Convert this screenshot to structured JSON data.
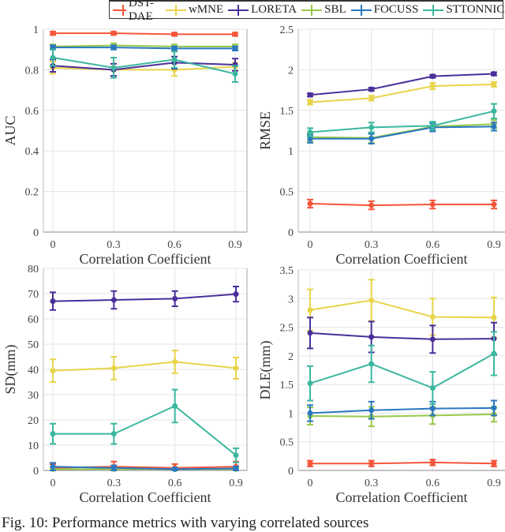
{
  "legend": [
    "DST-DAE",
    "wMNE",
    "LORETA",
    "SBL",
    "FOCUSS",
    "STTONNICA"
  ],
  "colors": [
    "#f4553a",
    "#e8d44a",
    "#4a2f9a",
    "#98c84a",
    "#2a78c0",
    "#3bb79e"
  ],
  "caption": "Fig. 10: Performance metrics with varying correlated sources",
  "chart_data": [
    {
      "type": "line",
      "ylabel": "AUC",
      "xlabel": "Correlation Coefficient",
      "x": [
        0,
        0.3,
        0.6,
        0.9
      ],
      "ylim": [
        0,
        1
      ],
      "yticks": [
        0,
        0.2,
        0.4,
        0.6,
        0.8,
        1
      ],
      "grid": true,
      "series": [
        {
          "name": "DST-DAE",
          "values": [
            0.98,
            0.98,
            0.975,
            0.975
          ],
          "err": [
            0.008,
            0.008,
            0.008,
            0.008
          ]
        },
        {
          "name": "wMNE",
          "values": [
            0.81,
            0.8,
            0.8,
            0.815
          ],
          "err": [
            0.03,
            0.03,
            0.03,
            0.02
          ]
        },
        {
          "name": "LORETA",
          "values": [
            0.82,
            0.8,
            0.835,
            0.825
          ],
          "err": [
            0.03,
            0.03,
            0.03,
            0.03
          ]
        },
        {
          "name": "SBL",
          "values": [
            0.915,
            0.92,
            0.915,
            0.915
          ],
          "err": [
            0.01,
            0.01,
            0.01,
            0.01
          ]
        },
        {
          "name": "FOCUSS",
          "values": [
            0.91,
            0.91,
            0.905,
            0.905
          ],
          "err": [
            0.01,
            0.01,
            0.01,
            0.01
          ]
        },
        {
          "name": "STTONNICA",
          "values": [
            0.86,
            0.81,
            0.85,
            0.78
          ],
          "err": [
            0.04,
            0.05,
            0.04,
            0.04
          ]
        }
      ]
    },
    {
      "type": "line",
      "ylabel": "RMSE",
      "xlabel": "Correlation Coefficient",
      "x": [
        0,
        0.3,
        0.6,
        0.9
      ],
      "ylim": [
        0,
        2.5
      ],
      "yticks": [
        0,
        0.5,
        1,
        1.5,
        2,
        2.5
      ],
      "grid": true,
      "series": [
        {
          "name": "DST-DAE",
          "values": [
            0.35,
            0.33,
            0.34,
            0.34
          ],
          "err": [
            0.05,
            0.05,
            0.05,
            0.05
          ]
        },
        {
          "name": "wMNE",
          "values": [
            1.6,
            1.65,
            1.8,
            1.82
          ],
          "err": [
            0.03,
            0.03,
            0.04,
            0.03
          ]
        },
        {
          "name": "LORETA",
          "values": [
            1.69,
            1.76,
            1.92,
            1.95
          ],
          "err": [
            0.02,
            0.02,
            0.02,
            0.02
          ]
        },
        {
          "name": "SBL",
          "values": [
            1.17,
            1.16,
            1.3,
            1.33
          ],
          "err": [
            0.05,
            0.06,
            0.05,
            0.05
          ]
        },
        {
          "name": "FOCUSS",
          "values": [
            1.15,
            1.15,
            1.29,
            1.3
          ],
          "err": [
            0.05,
            0.06,
            0.05,
            0.05
          ]
        },
        {
          "name": "STTONNICA",
          "values": [
            1.23,
            1.29,
            1.31,
            1.49
          ],
          "err": [
            0.05,
            0.06,
            0.05,
            0.09
          ]
        }
      ]
    },
    {
      "type": "line",
      "ylabel": "SD(mm)",
      "xlabel": "Correlation Coefficient",
      "x": [
        0,
        0.3,
        0.6,
        0.9
      ],
      "ylim": [
        0,
        80
      ],
      "yticks": [
        0,
        10,
        20,
        30,
        40,
        50,
        60,
        70,
        80
      ],
      "grid": true,
      "series": [
        {
          "name": "DST-DAE",
          "values": [
            1,
            1.5,
            1,
            1.5
          ],
          "err": [
            1.5,
            2,
            1.5,
            2
          ]
        },
        {
          "name": "wMNE",
          "values": [
            39.5,
            40.5,
            43,
            40.5
          ],
          "err": [
            4.5,
            4.5,
            4.5,
            4.2
          ]
        },
        {
          "name": "LORETA",
          "values": [
            67,
            67.5,
            68,
            69.8
          ],
          "err": [
            3.5,
            3.5,
            3,
            3
          ]
        },
        {
          "name": "SBL",
          "values": [
            0.5,
            0.5,
            0.5,
            0.5
          ],
          "err": [
            0.5,
            0.5,
            0.5,
            0.5
          ]
        },
        {
          "name": "FOCUSS",
          "values": [
            1.5,
            1,
            0.5,
            0.8
          ],
          "err": [
            1.5,
            1,
            0.5,
            0.8
          ]
        },
        {
          "name": "STTONNICA",
          "values": [
            14.5,
            14.5,
            25.5,
            6
          ],
          "err": [
            4,
            4,
            6.5,
            2.8
          ]
        }
      ]
    },
    {
      "type": "line",
      "ylabel": "DLE(mm)",
      "xlabel": "Correlation Coefficient",
      "x": [
        0,
        0.3,
        0.6,
        0.9
      ],
      "ylim": [
        0,
        3.5
      ],
      "yticks": [
        0,
        0.5,
        1,
        1.5,
        2,
        2.5,
        3,
        3.5
      ],
      "grid": true,
      "series": [
        {
          "name": "DST-DAE",
          "values": [
            0.12,
            0.12,
            0.14,
            0.12
          ],
          "err": [
            0.05,
            0.05,
            0.05,
            0.05
          ]
        },
        {
          "name": "wMNE",
          "values": [
            2.8,
            2.97,
            2.68,
            2.67
          ],
          "err": [
            0.36,
            0.36,
            0.32,
            0.35
          ]
        },
        {
          "name": "LORETA",
          "values": [
            2.4,
            2.33,
            2.29,
            2.3
          ],
          "err": [
            0.27,
            0.27,
            0.24,
            0.28
          ]
        },
        {
          "name": "SBL",
          "values": [
            0.95,
            0.94,
            0.96,
            0.98
          ],
          "err": [
            0.15,
            0.17,
            0.15,
            0.13
          ]
        },
        {
          "name": "FOCUSS",
          "values": [
            1.0,
            1.05,
            1.08,
            1.09
          ],
          "err": [
            0.14,
            0.15,
            0.12,
            0.13
          ]
        },
        {
          "name": "STTONNICA",
          "values": [
            1.52,
            1.86,
            1.44,
            2.04
          ],
          "err": [
            0.3,
            0.32,
            0.28,
            0.38
          ]
        }
      ]
    }
  ]
}
